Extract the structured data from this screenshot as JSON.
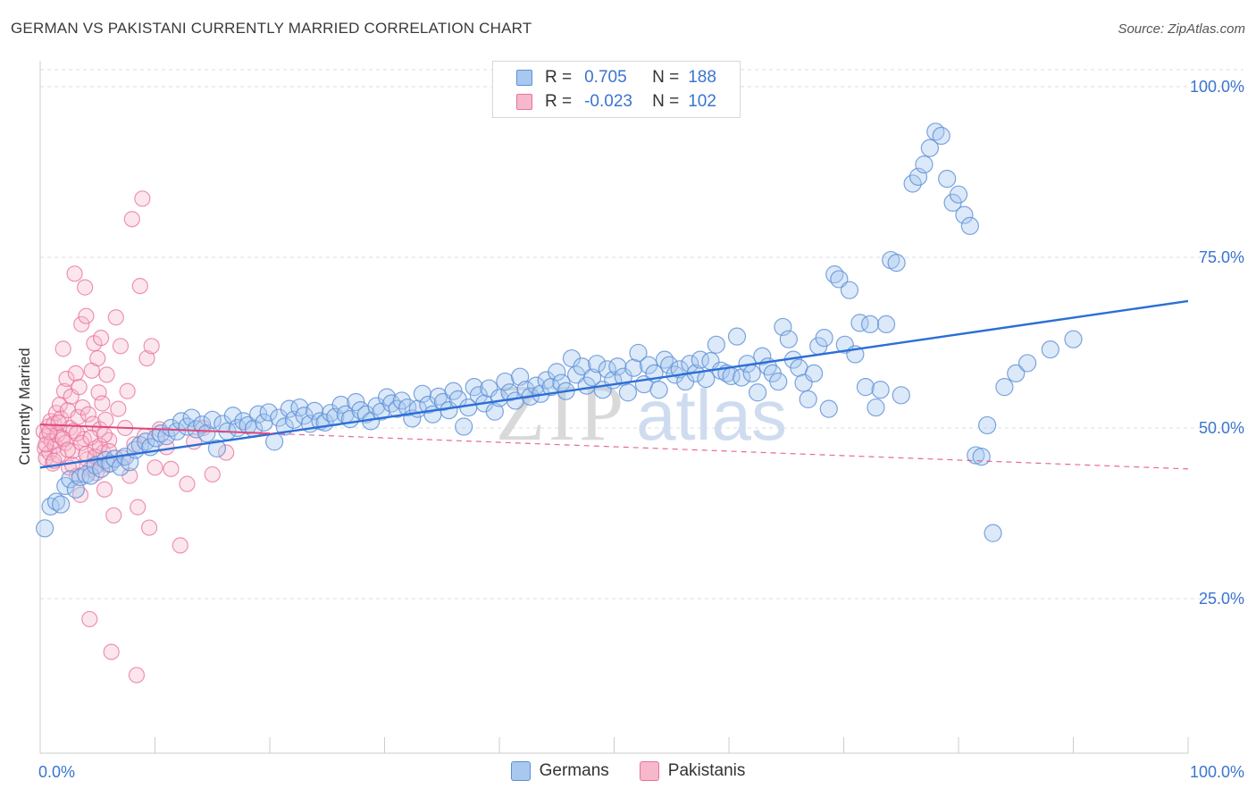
{
  "header": {
    "title": "GERMAN VS PAKISTANI CURRENTLY MARRIED CORRELATION CHART",
    "source": "Source: ZipAtlas.com"
  },
  "legend": {
    "r_label": "R =",
    "n_label": "N =",
    "rows": [
      {
        "name": "Germans",
        "r": "0.705",
        "n": "188"
      },
      {
        "name": "Pakistanis",
        "r": "-0.023",
        "n": "102"
      }
    ]
  },
  "watermark": {
    "part1": "ZIP",
    "part2": "atlas"
  },
  "colors": {
    "blue_fill": "#a8c8f0",
    "blue_stroke": "#5b8fd6",
    "blue_line": "#2b6fd6",
    "pink_fill": "#f7b8cc",
    "pink_stroke": "#e8709a",
    "pink_line": "#e0457a",
    "axis_text": "#3a74d0",
    "grid": "#dddddd"
  },
  "chart_data": {
    "type": "scatter",
    "title": "GERMAN VS PAKISTANI CURRENTLY MARRIED CORRELATION CHART",
    "xlabel": "",
    "ylabel": "Currently Married",
    "xlim": [
      0,
      100
    ],
    "ylim": [
      0,
      100
    ],
    "x_tick_labels": [
      {
        "v": 0,
        "label": "0.0%"
      },
      {
        "v": 100,
        "label": "100.0%"
      }
    ],
    "y_tick_labels": [
      {
        "v": 25,
        "label": "25.0%"
      },
      {
        "v": 50,
        "label": "50.0%"
      },
      {
        "v": 75,
        "label": "75.0%"
      },
      {
        "v": 100,
        "label": "100.0%"
      }
    ],
    "grid": true,
    "legend_position": "top-center",
    "series": [
      {
        "name": "Germans",
        "r": 0.705,
        "n": 188,
        "trend": {
          "x0": 0,
          "y0": 44.2,
          "x1": 100,
          "y1": 68.6,
          "style": "solid"
        },
        "points": [
          [
            0.4,
            35.3
          ],
          [
            0.9,
            38.5
          ],
          [
            1.4,
            39.2
          ],
          [
            1.8,
            38.8
          ],
          [
            2.2,
            41.5
          ],
          [
            2.6,
            42.5
          ],
          [
            3.1,
            41.0
          ],
          [
            3.5,
            42.8
          ],
          [
            4.0,
            43.2
          ],
          [
            4.4,
            43.0
          ],
          [
            4.8,
            44.5
          ],
          [
            5.3,
            44.0
          ],
          [
            5.7,
            45.3
          ],
          [
            6.1,
            44.8
          ],
          [
            6.5,
            45.5
          ],
          [
            7.0,
            44.3
          ],
          [
            7.4,
            45.8
          ],
          [
            7.8,
            45.0
          ],
          [
            8.3,
            46.8
          ],
          [
            8.7,
            47.5
          ],
          [
            9.2,
            48.0
          ],
          [
            9.6,
            47.2
          ],
          [
            10.1,
            48.5
          ],
          [
            10.5,
            49.2
          ],
          [
            11.0,
            48.8
          ],
          [
            11.4,
            50.0
          ],
          [
            11.9,
            49.5
          ],
          [
            12.3,
            51.0
          ],
          [
            12.8,
            50.2
          ],
          [
            13.2,
            51.5
          ],
          [
            13.6,
            49.8
          ],
          [
            14.1,
            50.5
          ],
          [
            14.5,
            49.2
          ],
          [
            15.0,
            51.2
          ],
          [
            15.4,
            47.0
          ],
          [
            15.9,
            50.6
          ],
          [
            16.3,
            49.5
          ],
          [
            16.8,
            51.8
          ],
          [
            17.2,
            50.0
          ],
          [
            17.7,
            51.0
          ],
          [
            18.1,
            50.4
          ],
          [
            18.6,
            49.9
          ],
          [
            19.0,
            52.0
          ],
          [
            19.5,
            50.8
          ],
          [
            19.9,
            52.3
          ],
          [
            20.4,
            48.0
          ],
          [
            20.8,
            51.5
          ],
          [
            21.3,
            50.2
          ],
          [
            21.7,
            52.8
          ],
          [
            22.1,
            51.2
          ],
          [
            22.6,
            53.0
          ],
          [
            23.0,
            51.8
          ],
          [
            23.5,
            50.6
          ],
          [
            23.9,
            52.5
          ],
          [
            24.4,
            51.0
          ],
          [
            24.8,
            50.8
          ],
          [
            25.3,
            52.2
          ],
          [
            25.7,
            51.6
          ],
          [
            26.2,
            53.4
          ],
          [
            26.6,
            52.0
          ],
          [
            27.0,
            51.3
          ],
          [
            27.5,
            53.8
          ],
          [
            27.9,
            52.6
          ],
          [
            28.4,
            52.0
          ],
          [
            28.8,
            51.0
          ],
          [
            29.3,
            53.2
          ],
          [
            29.7,
            52.4
          ],
          [
            30.2,
            54.5
          ],
          [
            30.6,
            53.6
          ],
          [
            31.1,
            52.8
          ],
          [
            31.5,
            54.0
          ],
          [
            32.0,
            53.0
          ],
          [
            32.4,
            51.4
          ],
          [
            32.9,
            52.8
          ],
          [
            33.3,
            55.0
          ],
          [
            33.8,
            53.4
          ],
          [
            34.2,
            52.0
          ],
          [
            34.7,
            54.6
          ],
          [
            35.1,
            53.8
          ],
          [
            35.6,
            52.6
          ],
          [
            36.0,
            55.4
          ],
          [
            36.4,
            54.2
          ],
          [
            36.9,
            50.2
          ],
          [
            37.3,
            53.0
          ],
          [
            37.8,
            56.0
          ],
          [
            38.2,
            54.8
          ],
          [
            38.7,
            53.6
          ],
          [
            39.1,
            55.8
          ],
          [
            39.6,
            52.4
          ],
          [
            40.0,
            54.4
          ],
          [
            40.5,
            56.8
          ],
          [
            40.9,
            55.2
          ],
          [
            41.4,
            54.0
          ],
          [
            41.8,
            57.5
          ],
          [
            42.3,
            55.6
          ],
          [
            42.7,
            54.6
          ],
          [
            43.2,
            56.2
          ],
          [
            43.6,
            55.0
          ],
          [
            44.1,
            57.0
          ],
          [
            44.5,
            56.0
          ],
          [
            45.0,
            58.2
          ],
          [
            45.4,
            56.6
          ],
          [
            45.8,
            55.4
          ],
          [
            46.3,
            60.2
          ],
          [
            46.7,
            57.8
          ],
          [
            47.2,
            59.0
          ],
          [
            47.6,
            56.2
          ],
          [
            48.1,
            57.4
          ],
          [
            48.5,
            59.4
          ],
          [
            49.0,
            55.6
          ],
          [
            49.4,
            58.6
          ],
          [
            49.9,
            57.0
          ],
          [
            50.3,
            59.0
          ],
          [
            50.8,
            57.5
          ],
          [
            51.2,
            55.2
          ],
          [
            51.7,
            58.8
          ],
          [
            52.1,
            61.0
          ],
          [
            52.6,
            56.4
          ],
          [
            53.0,
            59.2
          ],
          [
            53.5,
            58.0
          ],
          [
            53.9,
            55.6
          ],
          [
            54.4,
            60.0
          ],
          [
            54.8,
            59.2
          ],
          [
            55.3,
            57.8
          ],
          [
            55.7,
            58.6
          ],
          [
            56.2,
            56.8
          ],
          [
            56.6,
            59.4
          ],
          [
            57.1,
            58.0
          ],
          [
            57.5,
            60.0
          ],
          [
            58.0,
            57.2
          ],
          [
            58.4,
            59.8
          ],
          [
            58.9,
            62.2
          ],
          [
            59.3,
            58.4
          ],
          [
            59.8,
            58.0
          ],
          [
            60.2,
            57.6
          ],
          [
            60.7,
            63.4
          ],
          [
            61.1,
            57.4
          ],
          [
            61.6,
            59.4
          ],
          [
            62.0,
            58.0
          ],
          [
            62.5,
            55.2
          ],
          [
            62.9,
            60.5
          ],
          [
            63.4,
            59.0
          ],
          [
            63.8,
            58.0
          ],
          [
            64.3,
            56.8
          ],
          [
            64.7,
            64.8
          ],
          [
            65.2,
            63.0
          ],
          [
            65.6,
            60.0
          ],
          [
            66.1,
            58.8
          ],
          [
            66.5,
            56.6
          ],
          [
            66.9,
            54.2
          ],
          [
            67.4,
            58.0
          ],
          [
            67.8,
            62.0
          ],
          [
            68.3,
            63.2
          ],
          [
            68.7,
            52.8
          ],
          [
            69.2,
            72.5
          ],
          [
            69.6,
            71.8
          ],
          [
            70.1,
            62.2
          ],
          [
            70.5,
            70.2
          ],
          [
            71.0,
            60.8
          ],
          [
            71.4,
            65.4
          ],
          [
            71.9,
            56.0
          ],
          [
            72.3,
            65.2
          ],
          [
            72.8,
            53.0
          ],
          [
            73.2,
            55.6
          ],
          [
            73.7,
            65.2
          ],
          [
            74.1,
            74.6
          ],
          [
            74.6,
            74.2
          ],
          [
            75.0,
            54.8
          ],
          [
            76.0,
            85.8
          ],
          [
            76.5,
            86.8
          ],
          [
            77.0,
            88.6
          ],
          [
            77.5,
            91.0
          ],
          [
            78.0,
            93.4
          ],
          [
            78.5,
            92.8
          ],
          [
            79.0,
            86.5
          ],
          [
            79.5,
            83.0
          ],
          [
            80.0,
            84.2
          ],
          [
            80.5,
            81.2
          ],
          [
            81.0,
            79.6
          ],
          [
            81.5,
            46.0
          ],
          [
            82.0,
            45.8
          ],
          [
            82.5,
            50.4
          ],
          [
            83.0,
            34.6
          ],
          [
            84.0,
            56.0
          ],
          [
            85.0,
            58.0
          ],
          [
            86.0,
            59.5
          ],
          [
            88.0,
            61.5
          ],
          [
            90.0,
            63.0
          ]
        ]
      },
      {
        "name": "Pakistanis",
        "r": -0.023,
        "n": 102,
        "trend": {
          "x0": 0,
          "y0": 50.5,
          "x1": 100,
          "y1": 44.0,
          "style": "solid-then-dashed"
        },
        "points": [
          [
            0.3,
            49.5
          ],
          [
            0.4,
            47.0
          ],
          [
            0.5,
            45.6
          ],
          [
            0.6,
            48.8
          ],
          [
            0.7,
            50.2
          ],
          [
            0.8,
            46.4
          ],
          [
            0.9,
            51.0
          ],
          [
            1.0,
            48.0
          ],
          [
            1.1,
            44.8
          ],
          [
            1.2,
            50.6
          ],
          [
            1.3,
            47.4
          ],
          [
            1.4,
            52.2
          ],
          [
            1.5,
            49.0
          ],
          [
            1.6,
            46.0
          ],
          [
            1.7,
            53.4
          ],
          [
            1.8,
            51.4
          ],
          [
            1.9,
            48.6
          ],
          [
            2.0,
            61.6
          ],
          [
            2.1,
            55.4
          ],
          [
            2.2,
            47.8
          ],
          [
            2.3,
            57.2
          ],
          [
            2.4,
            52.6
          ],
          [
            2.5,
            44.2
          ],
          [
            2.6,
            50.0
          ],
          [
            2.7,
            54.6
          ],
          [
            2.8,
            46.6
          ],
          [
            2.9,
            49.6
          ],
          [
            3.0,
            72.6
          ],
          [
            3.1,
            58.0
          ],
          [
            3.2,
            43.0
          ],
          [
            3.3,
            51.6
          ],
          [
            3.4,
            56.0
          ],
          [
            3.5,
            40.2
          ],
          [
            3.6,
            65.2
          ],
          [
            3.7,
            53.0
          ],
          [
            3.8,
            48.4
          ],
          [
            3.9,
            70.6
          ],
          [
            4.0,
            66.4
          ],
          [
            4.1,
            45.4
          ],
          [
            4.2,
            52.0
          ],
          [
            4.3,
            22.0
          ],
          [
            4.4,
            44.0
          ],
          [
            4.5,
            58.4
          ],
          [
            4.6,
            50.6
          ],
          [
            4.7,
            62.4
          ],
          [
            4.8,
            47.0
          ],
          [
            4.9,
            43.4
          ],
          [
            5.0,
            60.2
          ],
          [
            5.1,
            55.2
          ],
          [
            5.2,
            49.8
          ],
          [
            5.3,
            63.2
          ],
          [
            5.4,
            53.6
          ],
          [
            5.5,
            46.4
          ],
          [
            5.6,
            41.0
          ],
          [
            5.7,
            51.2
          ],
          [
            5.8,
            57.8
          ],
          [
            5.9,
            44.6
          ],
          [
            6.0,
            48.2
          ],
          [
            6.2,
            17.2
          ],
          [
            6.4,
            37.2
          ],
          [
            6.6,
            66.2
          ],
          [
            6.8,
            52.8
          ],
          [
            7.0,
            62.0
          ],
          [
            7.2,
            45.6
          ],
          [
            7.4,
            50.0
          ],
          [
            7.6,
            55.4
          ],
          [
            7.8,
            43.0
          ],
          [
            8.0,
            80.6
          ],
          [
            8.2,
            47.6
          ],
          [
            8.4,
            13.8
          ],
          [
            8.5,
            38.4
          ],
          [
            8.7,
            70.8
          ],
          [
            8.9,
            83.6
          ],
          [
            9.1,
            48.8
          ],
          [
            9.3,
            60.2
          ],
          [
            9.5,
            35.4
          ],
          [
            9.7,
            62.0
          ],
          [
            10.0,
            44.2
          ],
          [
            10.4,
            49.8
          ],
          [
            11.0,
            47.2
          ],
          [
            11.4,
            44.0
          ],
          [
            12.2,
            32.8
          ],
          [
            12.8,
            41.8
          ],
          [
            13.4,
            48.0
          ],
          [
            14.2,
            50.0
          ],
          [
            15.0,
            43.2
          ],
          [
            16.2,
            46.4
          ],
          [
            0.5,
            47.6
          ],
          [
            0.8,
            49.4
          ],
          [
            1.2,
            45.2
          ],
          [
            1.6,
            50.8
          ],
          [
            2.0,
            48.4
          ],
          [
            2.4,
            46.8
          ],
          [
            2.8,
            44.6
          ],
          [
            3.2,
            49.2
          ],
          [
            3.6,
            47.8
          ],
          [
            4.0,
            46.2
          ],
          [
            4.4,
            48.6
          ],
          [
            4.8,
            45.8
          ],
          [
            5.2,
            47.4
          ],
          [
            5.6,
            49.0
          ],
          [
            6.0,
            46.6
          ]
        ]
      }
    ]
  },
  "bottom_legend": [
    "Germans",
    "Pakistanis"
  ]
}
